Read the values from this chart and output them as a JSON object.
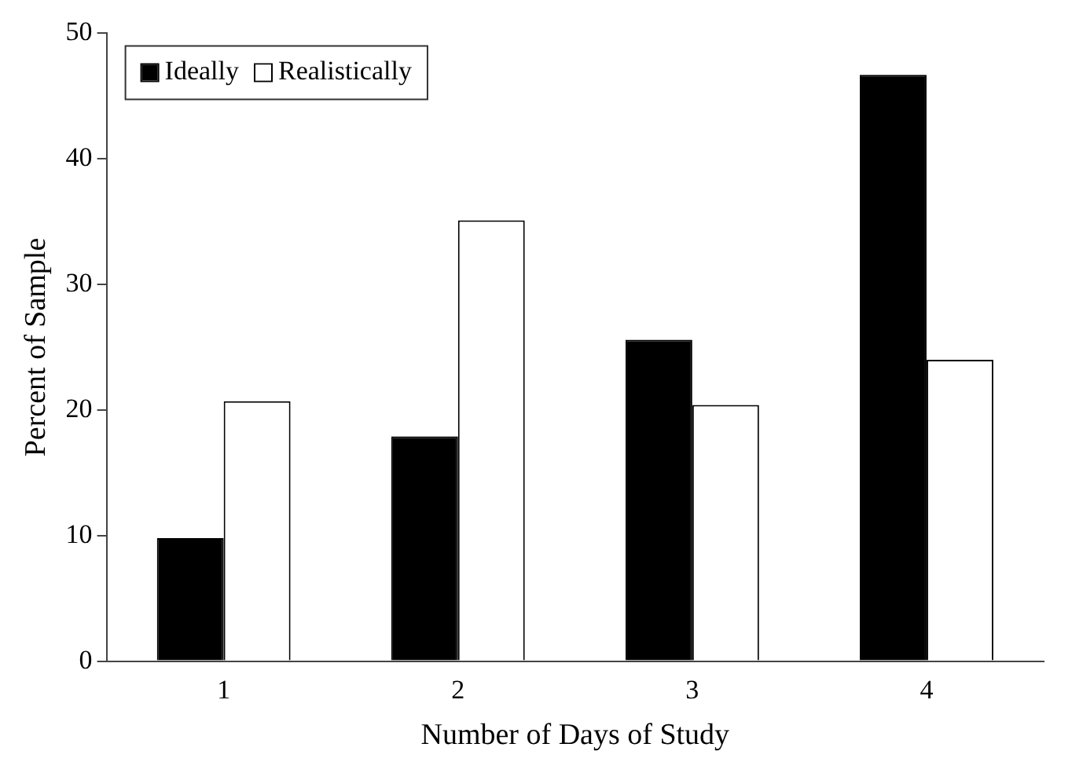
{
  "chart_data": {
    "type": "bar",
    "xlabel": "Number of Days of Study",
    "ylabel": "Percent of Sample",
    "categories": [
      "1",
      "2",
      "3",
      "4"
    ],
    "series": [
      {
        "name": "Ideally",
        "color": "#000000",
        "values": [
          9.8,
          17.9,
          25.6,
          46.7
        ]
      },
      {
        "name": "Realistically",
        "color": "#ffffff",
        "values": [
          20.7,
          35.1,
          20.4,
          24.0
        ]
      }
    ],
    "ylim": [
      0,
      50
    ],
    "yticks": [
      0,
      10,
      20,
      30,
      40,
      50
    ],
    "grid": false,
    "legend": "top left"
  }
}
